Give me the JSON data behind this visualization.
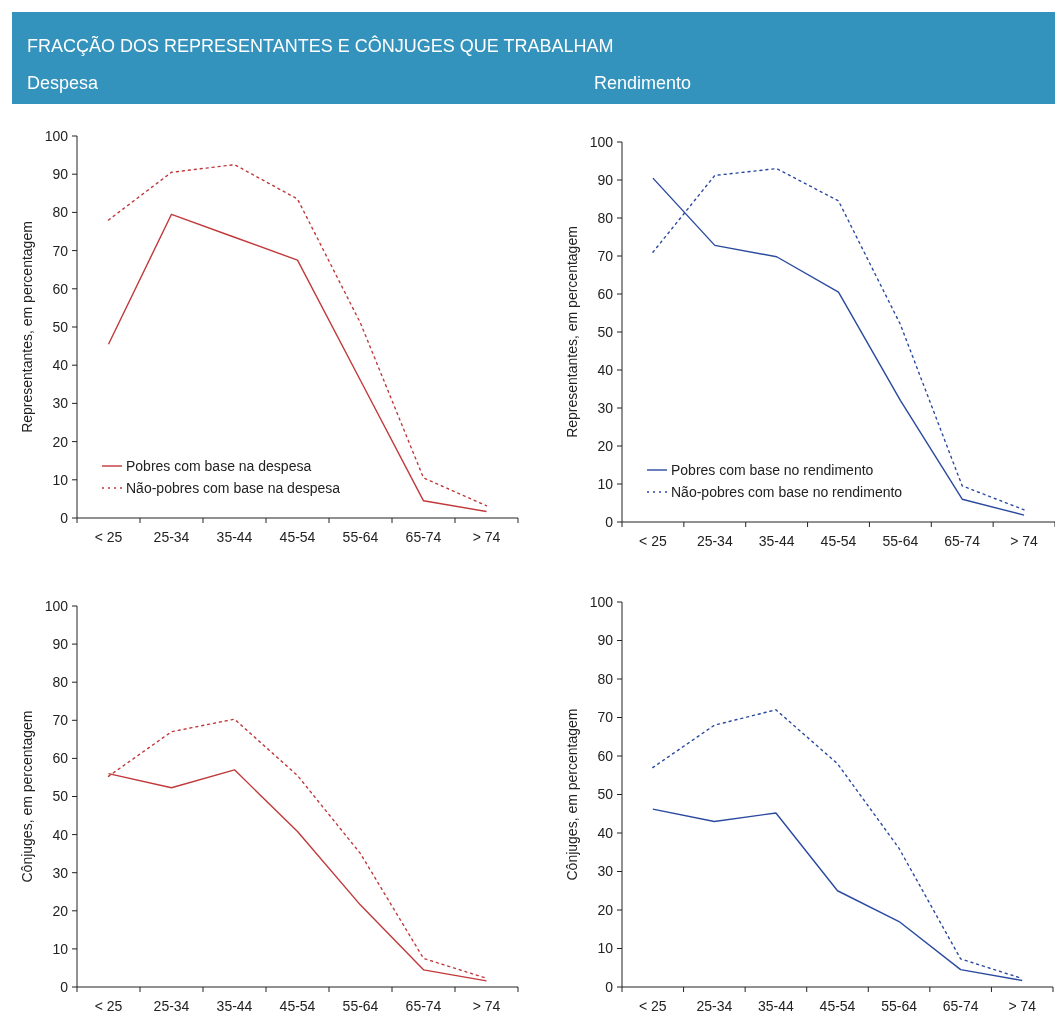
{
  "chart_data": [
    {
      "type": "line",
      "title": "FRACÇÃO DOS REPRESENTANTES E CÔNJUGES QUE TRABALHAM",
      "subtitle": "Despesa",
      "ylabel": "Representantes, em percentagem",
      "categories": [
        "< 25",
        "25-34",
        "35-44",
        "45-54",
        "55-64",
        "65-74",
        "> 74"
      ],
      "ylim": [
        0,
        100
      ],
      "yticks": [
        0,
        10,
        20,
        30,
        40,
        50,
        60,
        70,
        80,
        90,
        100
      ],
      "grid": false,
      "legend": "bottom left",
      "marker": "none",
      "series": [
        {
          "name": "Pobres com base na despesa",
          "color": "#c0393b",
          "line_style": "solid",
          "values": [
            45.5,
            79.5,
            73.5,
            67.5,
            36,
            4.5,
            1.7
          ]
        },
        {
          "name": "Não-pobres com base na despesa",
          "color": "#c0393b",
          "line_style": "dotted",
          "values": [
            78,
            90.5,
            92.5,
            83.5,
            51,
            10.5,
            3.2
          ]
        }
      ]
    },
    {
      "type": "line",
      "subtitle": "Rendimento",
      "ylabel": "Representantes, em percentagem",
      "categories": [
        "< 25",
        "25-34",
        "35-44",
        "45-54",
        "55-64",
        "65-74",
        "> 74"
      ],
      "ylim": [
        0,
        100
      ],
      "yticks": [
        0,
        10,
        20,
        30,
        40,
        50,
        60,
        70,
        80,
        90,
        100
      ],
      "grid": false,
      "legend": "bottom left",
      "marker": "none",
      "series": [
        {
          "name": "Pobres com base no rendimento",
          "color": "#2a4aa0",
          "line_style": "solid",
          "values": [
            90.5,
            72.8,
            69.8,
            60.5,
            32,
            6,
            1.8
          ]
        },
        {
          "name": "Não-pobres com base no rendimento",
          "color": "#2a4aa0",
          "line_style": "dotted",
          "values": [
            71,
            91.2,
            93,
            84.5,
            52,
            9.5,
            3.2
          ]
        }
      ]
    },
    {
      "type": "line",
      "ylabel": "Cônjuges, em percentagem",
      "categories": [
        "< 25",
        "25-34",
        "35-44",
        "45-54",
        "55-64",
        "65-74",
        "> 74"
      ],
      "ylim": [
        0,
        100
      ],
      "yticks": [
        0,
        10,
        20,
        30,
        40,
        50,
        60,
        70,
        80,
        90,
        100
      ],
      "grid": false,
      "legend": false,
      "marker": "none",
      "series": [
        {
          "color": "#c0393b",
          "line_style": "solid",
          "values": [
            56,
            52.3,
            57,
            40.8,
            21.5,
            4.5,
            1.6
          ]
        },
        {
          "color": "#c0393b",
          "line_style": "dotted",
          "values": [
            55.3,
            67,
            70.3,
            55.5,
            35,
            7.5,
            2.3
          ]
        }
      ]
    },
    {
      "type": "line",
      "ylabel": "Cônjuges, em percentagem",
      "categories": [
        "< 25",
        "25-34",
        "35-44",
        "45-54",
        "55-64",
        "65-74",
        "> 74"
      ],
      "ylim": [
        0,
        100
      ],
      "yticks": [
        0,
        10,
        20,
        30,
        40,
        50,
        60,
        70,
        80,
        90,
        100
      ],
      "grid": false,
      "legend": false,
      "marker": "none",
      "series": [
        {
          "color": "#2a4aa0",
          "line_style": "solid",
          "values": [
            46.2,
            43,
            45.2,
            25,
            17,
            4.5,
            1.7
          ]
        },
        {
          "color": "#2a4aa0",
          "line_style": "dotted",
          "values": [
            57,
            68,
            72,
            58,
            36,
            7.3,
            2.2
          ]
        }
      ]
    }
  ]
}
